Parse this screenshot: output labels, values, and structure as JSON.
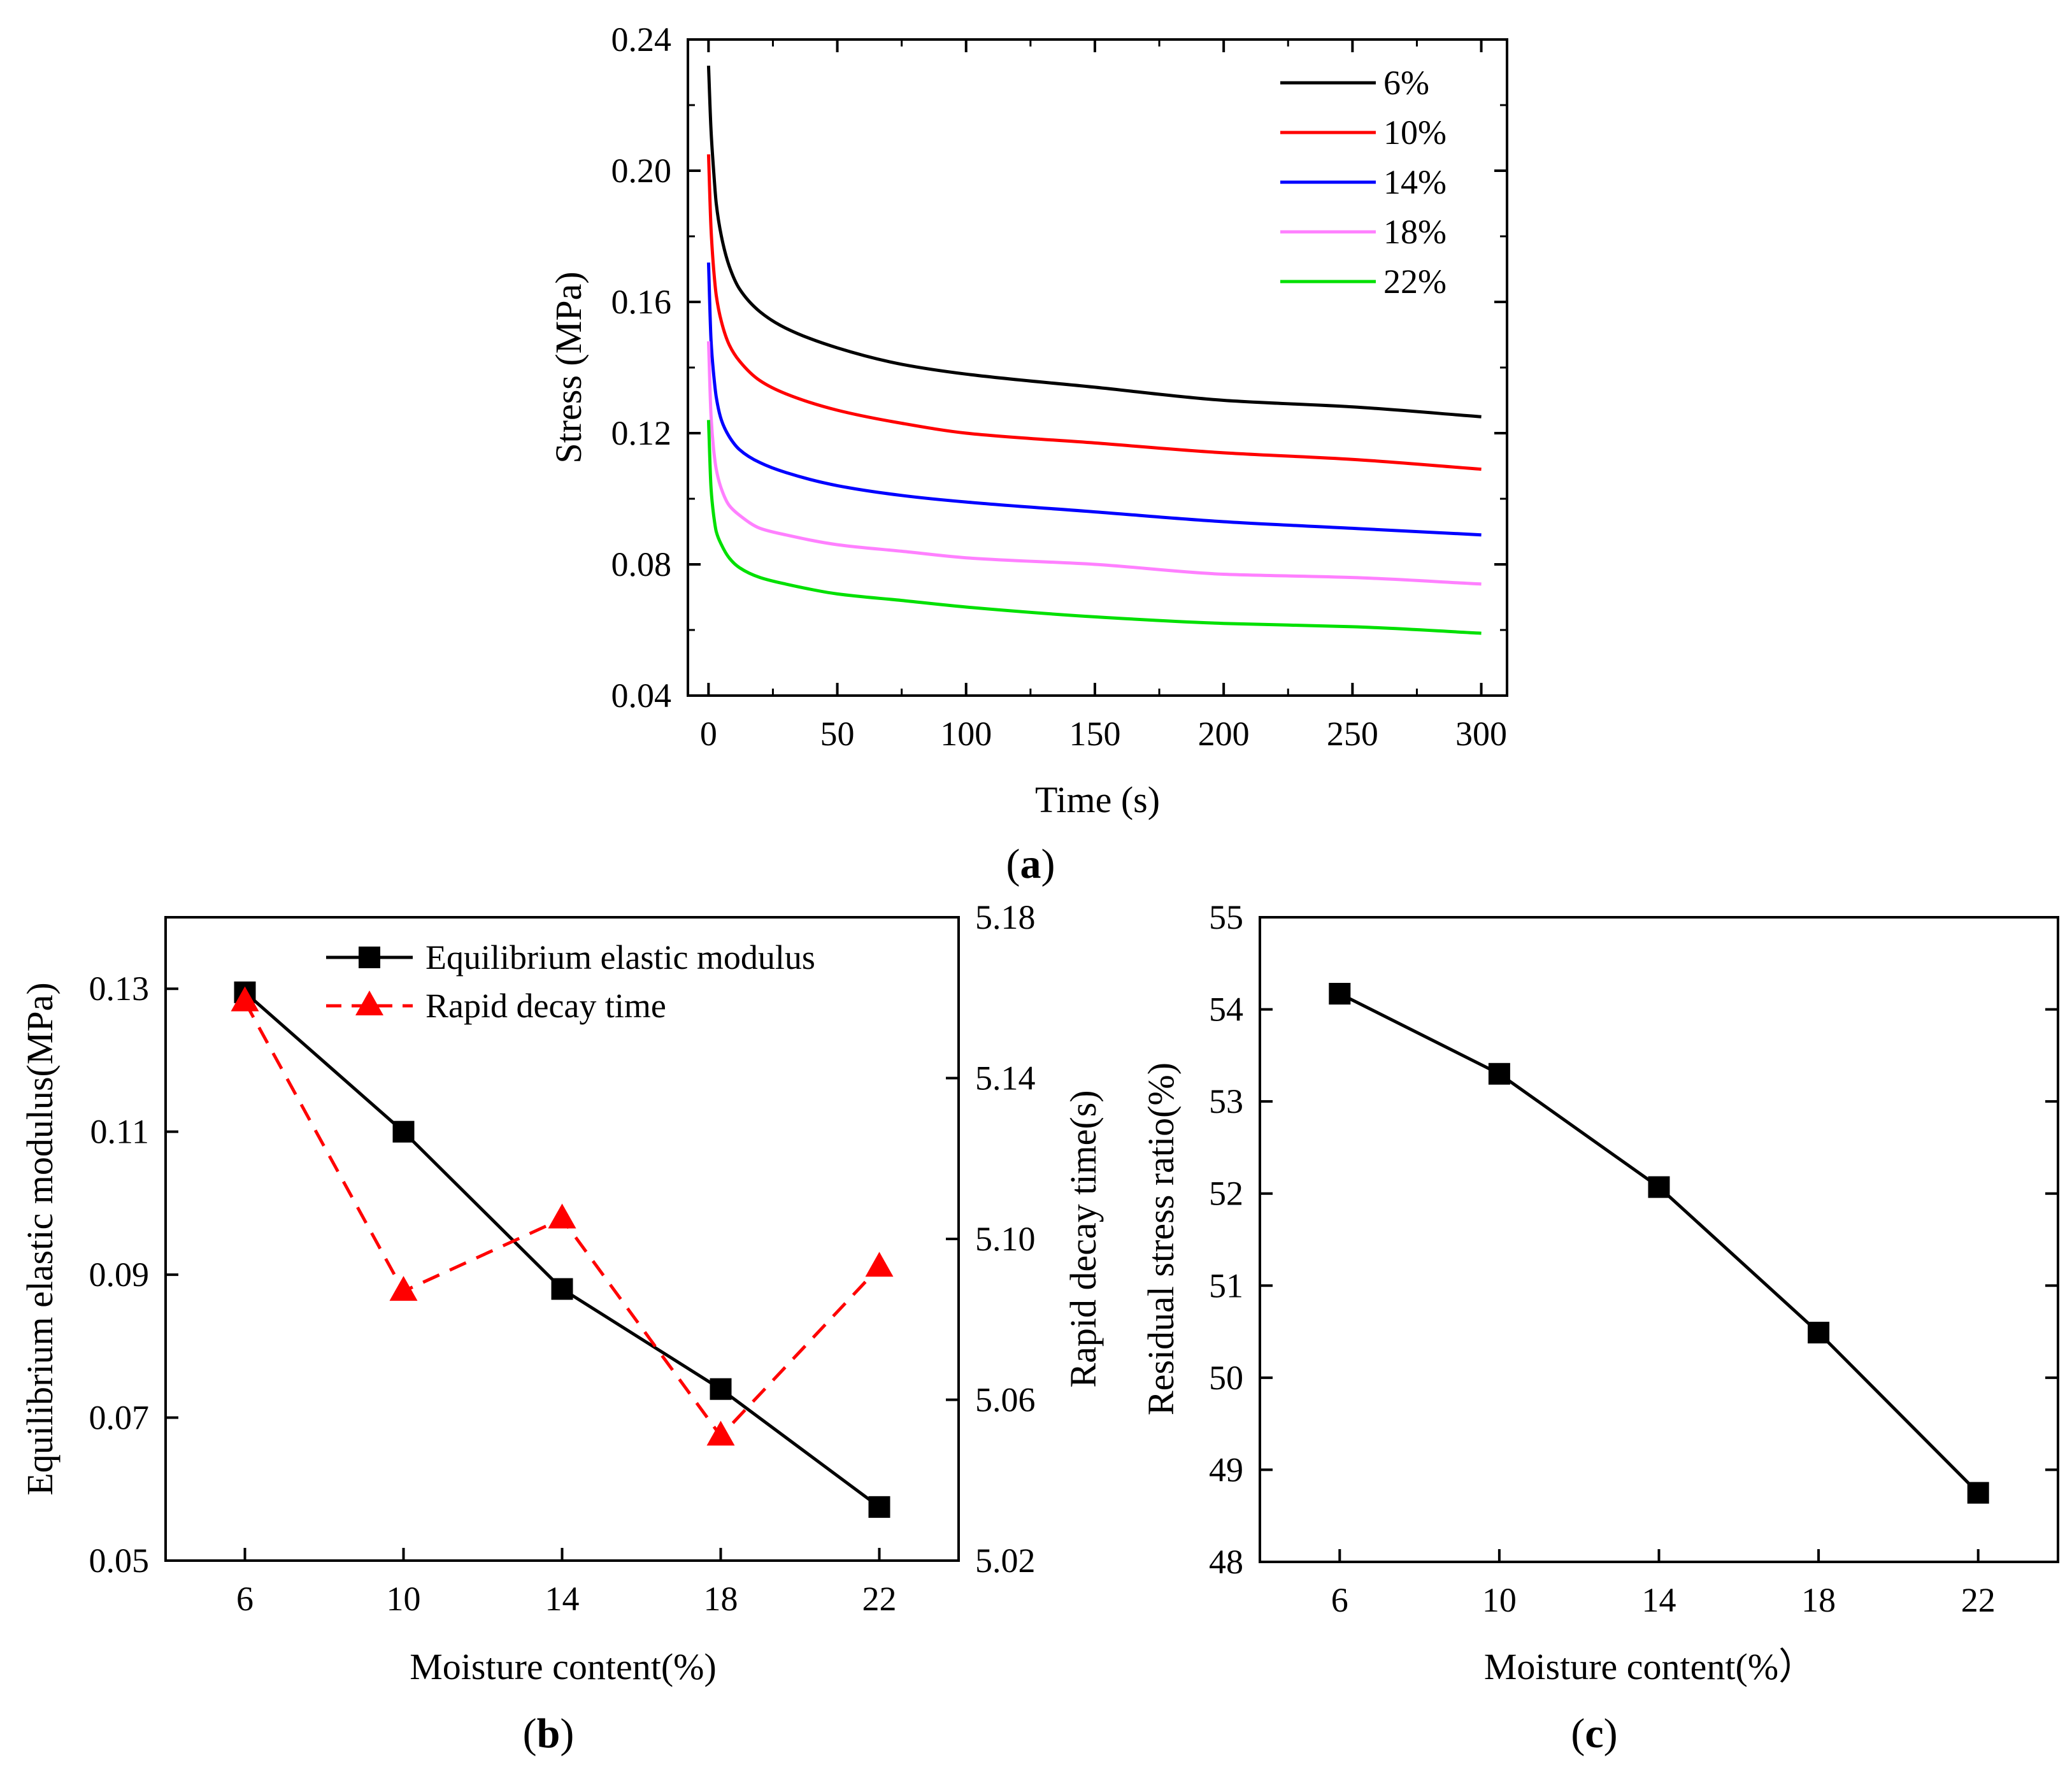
{
  "chart_data": [
    {
      "type": "line",
      "panel_label": "a",
      "title": "",
      "xlabel": "Time (s)",
      "ylabel": "Stress (MPa)",
      "xlim": [
        -8,
        310
      ],
      "ylim": [
        0.04,
        0.24
      ],
      "xticks": [
        0,
        50,
        100,
        150,
        200,
        250,
        300
      ],
      "xtick_labels": [
        "0",
        "50",
        "100",
        "150",
        "200",
        "250",
        "300"
      ],
      "yticks": [
        0.04,
        0.08,
        0.12,
        0.16,
        0.2,
        0.24
      ],
      "ytick_labels": [
        "0.04",
        "0.08",
        "0.12",
        "0.16",
        "0.20",
        "0.24"
      ],
      "legend_position": "top-right",
      "series": [
        {
          "name": "6%",
          "color": "#000000",
          "x": [
            0,
            1,
            2,
            3,
            5,
            8,
            12,
            20,
            30,
            50,
            75,
            100,
            150,
            200,
            250,
            300
          ],
          "values": [
            0.232,
            0.212,
            0.2,
            0.19,
            0.18,
            0.171,
            0.164,
            0.157,
            0.152,
            0.146,
            0.141,
            0.138,
            0.134,
            0.13,
            0.128,
            0.125
          ]
        },
        {
          "name": "10%",
          "color": "#ff0000",
          "x": [
            0,
            1,
            2,
            3,
            5,
            8,
            12,
            20,
            30,
            50,
            75,
            100,
            150,
            200,
            250,
            300
          ],
          "values": [
            0.205,
            0.182,
            0.17,
            0.162,
            0.154,
            0.147,
            0.142,
            0.136,
            0.132,
            0.127,
            0.123,
            0.12,
            0.117,
            0.114,
            0.112,
            0.109
          ]
        },
        {
          "name": "14%",
          "color": "#0000ff",
          "x": [
            0,
            1,
            2,
            3,
            5,
            8,
            12,
            20,
            30,
            50,
            75,
            100,
            150,
            200,
            250,
            300
          ],
          "values": [
            0.172,
            0.148,
            0.138,
            0.131,
            0.124,
            0.119,
            0.115,
            0.111,
            0.108,
            0.104,
            0.101,
            0.099,
            0.096,
            0.093,
            0.091,
            0.089
          ]
        },
        {
          "name": "18%",
          "color": "#ff80ff",
          "x": [
            0,
            1,
            2,
            3,
            5,
            8,
            12,
            20,
            30,
            50,
            75,
            100,
            150,
            200,
            250,
            300
          ],
          "values": [
            0.148,
            0.125,
            0.115,
            0.109,
            0.103,
            0.098,
            0.095,
            0.091,
            0.089,
            0.086,
            0.084,
            0.082,
            0.08,
            0.077,
            0.076,
            0.074
          ]
        },
        {
          "name": "22%",
          "color": "#00e000",
          "x": [
            0,
            1,
            2,
            3,
            5,
            8,
            12,
            20,
            30,
            50,
            75,
            100,
            150,
            200,
            250,
            300
          ],
          "values": [
            0.124,
            0.103,
            0.095,
            0.09,
            0.086,
            0.082,
            0.079,
            0.076,
            0.074,
            0.071,
            0.069,
            0.067,
            0.064,
            0.062,
            0.061,
            0.059
          ]
        }
      ]
    },
    {
      "type": "line",
      "panel_label": "b",
      "title": "",
      "xlabel": "Moisture content(%)",
      "ylabel": "Equilibrium elastic modulus(MPa)",
      "y2label": "Rapid decay time(s)",
      "categories": [
        "6",
        "10",
        "14",
        "18",
        "22"
      ],
      "x": [
        6,
        10,
        14,
        18,
        22
      ],
      "xlim": [
        4,
        24
      ],
      "ylim": [
        0.05,
        0.14
      ],
      "yticks": [
        0.05,
        0.07,
        0.09,
        0.11,
        0.13
      ],
      "ytick_labels": [
        "0.05",
        "0.07",
        "0.09",
        "0.11",
        "0.13"
      ],
      "y2lim": [
        5.02,
        5.18
      ],
      "y2ticks": [
        5.02,
        5.06,
        5.1,
        5.14,
        5.18
      ],
      "y2tick_labels": [
        "5.02",
        "5.06",
        "5.10",
        "5.14",
        "5.18"
      ],
      "legend_position": "top-center",
      "series": [
        {
          "name": "Equilibrium elastic modulus",
          "axis": "left",
          "color": "#000000",
          "marker": "square",
          "dash": "solid",
          "values": [
            0.1295,
            0.11,
            0.088,
            0.074,
            0.0575
          ]
        },
        {
          "name": "Rapid decay time",
          "axis": "right",
          "color": "#ff0000",
          "marker": "triangle",
          "dash": "dashed",
          "values": [
            5.159,
            5.087,
            5.105,
            5.051,
            5.093
          ]
        }
      ]
    },
    {
      "type": "line",
      "panel_label": "c",
      "title": "",
      "xlabel": "Moisture content(%）",
      "ylabel": "Residual stress ratio(%)",
      "categories": [
        "6",
        "10",
        "14",
        "18",
        "22"
      ],
      "x": [
        6,
        10,
        14,
        18,
        22
      ],
      "xlim": [
        4,
        24
      ],
      "ylim": [
        48,
        55
      ],
      "yticks": [
        48,
        49,
        50,
        51,
        52,
        53,
        54,
        55
      ],
      "ytick_labels": [
        "48",
        "49",
        "50",
        "51",
        "52",
        "53",
        "54",
        "55"
      ],
      "series": [
        {
          "name": "Residual stress ratio",
          "color": "#000000",
          "marker": "square",
          "values": [
            54.17,
            53.3,
            52.07,
            50.49,
            48.75
          ]
        }
      ]
    }
  ]
}
